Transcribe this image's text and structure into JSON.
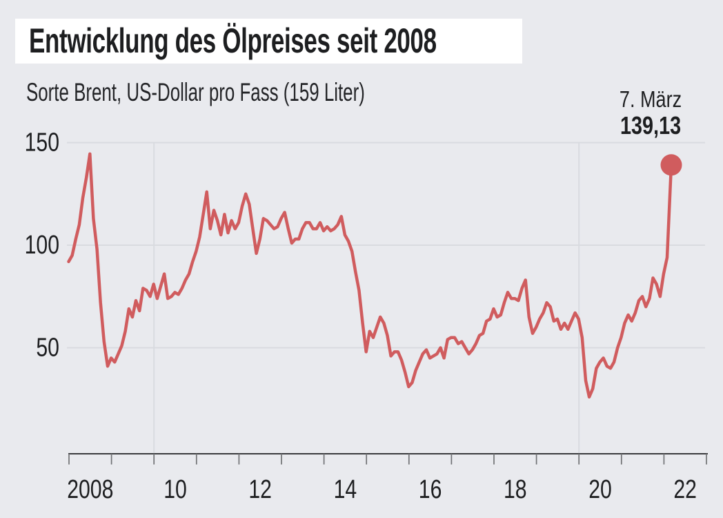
{
  "header": {
    "title": "Entwicklung des Ölpreises seit 2008",
    "subtitle": "Sorte Brent, US-Dollar pro Fass (159 Liter)"
  },
  "colors": {
    "background": "#e9eaee",
    "title_box": "#ffffff",
    "text": "#1d1e20",
    "line": "#d05c5e",
    "gridline": "#d9dbe0",
    "axis": "#3a3b3d",
    "tick": "#707174"
  },
  "chart_data": {
    "type": "line",
    "title": "Entwicklung des Ölpreises seit 2008",
    "subtitle": "Sorte Brent, US-Dollar pro Fass (159 Liter)",
    "series_name": "Brent-Ölpreis in US-Dollar pro Fass",
    "x_start_year": 2008,
    "x_interval": "monthly",
    "x_end": 2022.18,
    "ylim": [
      0,
      150
    ],
    "yticks": [
      150,
      100,
      50
    ],
    "x_axis": {
      "tick_year_start": 2008,
      "tick_year_end": 2023,
      "labels": [
        "2008",
        "10",
        "12",
        "14",
        "16",
        "18",
        "20",
        "22"
      ],
      "label_placement": "between-year-ticks"
    },
    "x_gridline_years": [
      2010,
      2020
    ],
    "grid": "horizontal-at-yticks",
    "line_color": "#d05c5e",
    "values": [
      92,
      95,
      103,
      110,
      123,
      133,
      144.5,
      113,
      98,
      72,
      53,
      41,
      45,
      43,
      47,
      51,
      58,
      69,
      65,
      73,
      68,
      79,
      78,
      75,
      81,
      74,
      80,
      86,
      74,
      75,
      77,
      76,
      79,
      83,
      86,
      92,
      97,
      104,
      115,
      126,
      108,
      117,
      112,
      105,
      115,
      106,
      112,
      108,
      111,
      119,
      125,
      120,
      108,
      96,
      103,
      113,
      112,
      110,
      108,
      109,
      113,
      116,
      108,
      101,
      103,
      103,
      108,
      111,
      111,
      108,
      108,
      111,
      107,
      109,
      107,
      108,
      110,
      114,
      105,
      102,
      97,
      87,
      78,
      62,
      48,
      58,
      55,
      60,
      65,
      62,
      56,
      46,
      48,
      48,
      44,
      38,
      31,
      33,
      39,
      43,
      47,
      49,
      45,
      46,
      47,
      50,
      45,
      54,
      55,
      55,
      52,
      53,
      50,
      47,
      49,
      52,
      56,
      57,
      63,
      64,
      69,
      65,
      66,
      72,
      77,
      74,
      74,
      73,
      79,
      83,
      65,
      57,
      60,
      64,
      67,
      72,
      70,
      63,
      64,
      59,
      62,
      59,
      63,
      67,
      64,
      55,
      34,
      26,
      30,
      40,
      43,
      45,
      41,
      40,
      43,
      50,
      55,
      62,
      66,
      63,
      67,
      73,
      75,
      70,
      74,
      84,
      81,
      75,
      86,
      94,
      139.13
    ],
    "annotation": {
      "date_label": "7. März",
      "value_label": "139,13",
      "value": 139.13
    }
  }
}
